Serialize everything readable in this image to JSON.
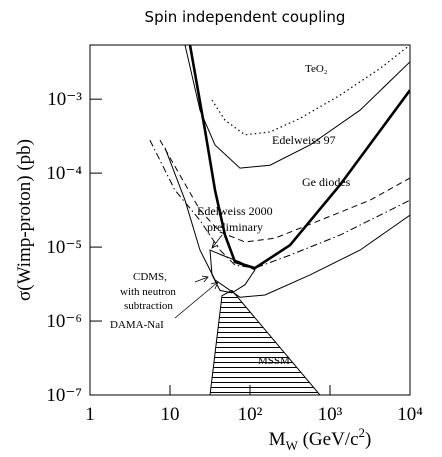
{
  "chart_data": {
    "type": "line",
    "title": "Spin independent coupling",
    "ylabel": "σ(Wimp-proton) (pb)",
    "xlabel": [
      "M",
      "W",
      " (GeV/c",
      "2",
      ")"
    ],
    "xscale": "log",
    "yscale": "log",
    "xlim": [
      1,
      10000
    ],
    "ylim": [
      1e-07,
      0.0054
    ],
    "xticks": [
      1,
      10,
      {
        "value": 100,
        "label": "10²"
      },
      {
        "value": 1000,
        "label": "10³"
      },
      {
        "value": 10000,
        "label": "10⁴"
      }
    ],
    "yticks": [
      {
        "value": 1e-07,
        "label": "10⁻⁷"
      },
      {
        "value": 1e-06,
        "label": "10⁻⁶"
      },
      {
        "value": 1e-05,
        "label": "10⁻⁵"
      },
      {
        "value": 0.0001,
        "label": "10⁻⁴"
      },
      {
        "value": 0.001,
        "label": "10⁻³"
      }
    ],
    "color": "#000000",
    "series": [
      {
        "style": "dotted",
        "width": 1.2,
        "x": [
          33.5,
          48.7,
          86.6,
          178,
          422,
          1334,
          4217,
          10000
        ],
        "y": [
          0.00097,
          0.00052,
          0.00033,
          0.00036,
          0.00055,
          0.00113,
          0.0026,
          0.0054
        ]
      },
      {
        "style": "solid",
        "width": 1,
        "x": [
          15.4,
          23.7,
          36.5,
          75,
          178,
          562,
          2371,
          10000
        ],
        "y": [
          0.0054,
          0.00071,
          0.00024,
          0.000117,
          0.000128,
          0.00024,
          0.00071,
          0.0032
        ]
      },
      {
        "style": "dashed",
        "width": 1,
        "x": [
          7.5,
          13.3,
          23.7,
          42.2,
          86.6,
          205,
          750,
          3162,
          10000
        ],
        "y": [
          0.00028,
          9.4e-05,
          3.16e-05,
          1.6e-05,
          1.17e-05,
          1.32e-05,
          2.3e-05,
          4.3e-05,
          8.6e-05
        ]
      },
      {
        "style": "dashdot",
        "width": 1,
        "x": [
          5.6,
          11.5,
          23.7,
          42.2,
          65,
          115,
          316,
          1334,
          10000
        ],
        "y": [
          0.00028,
          5.9e-05,
          2.3e-05,
          9.1e-06,
          5.7e-06,
          5.2e-06,
          7.8e-06,
          1.45e-05,
          4.3e-05
        ]
      },
      {
        "style": "solid",
        "width": 2.6,
        "x": [
          17.8,
          27.4,
          36.5,
          48.7,
          65,
          115,
          316,
          1334,
          10000
        ],
        "y": [
          0.0054,
          0.00038,
          5.9e-05,
          1.45e-05,
          6.3e-06,
          5.2e-06,
          1.06e-05,
          6.9e-05,
          0.00132
        ]
      },
      {
        "style": "solid",
        "width": 1,
        "x": [
          8.66,
          15.4,
          23.7,
          36.5,
          75,
          154,
          562,
          2371,
          10000
        ],
        "y": [
          0.00022,
          4.3e-05,
          9.1e-06,
          3.6e-06,
          2.1e-06,
          2.25e-06,
          4.2e-06,
          9.1e-06,
          2.7e-05
        ]
      },
      {
        "style": "solid",
        "width": 1,
        "closed": true,
        "x": [
          31.6,
          33.5,
          42.2,
          59.4,
          86.6,
          115,
          75,
          44.7,
          31.6
        ],
        "y": [
          9.1e-06,
          4.2e-06,
          2.6e-06,
          2.4e-06,
          3.1e-06,
          4.9e-06,
          6.3e-06,
          7.8e-06,
          9.1e-06
        ]
      },
      {
        "style": "solid",
        "width": 1,
        "closed": true,
        "hatch": true,
        "x": [
          31.6,
          44.7,
          59.4,
          750
        ],
        "y": [
          1e-07,
          2.2e-06,
          2.6e-06,
          1e-07
        ]
      }
    ],
    "annotations": [
      "TeO₂",
      "Edelweiss 97",
      "Ge diodes",
      "Edelweiss 2000",
      "preliminary",
      "CDMS,",
      "with neutron",
      "subtraction",
      "DAMA-NaI",
      "MSSM"
    ]
  }
}
